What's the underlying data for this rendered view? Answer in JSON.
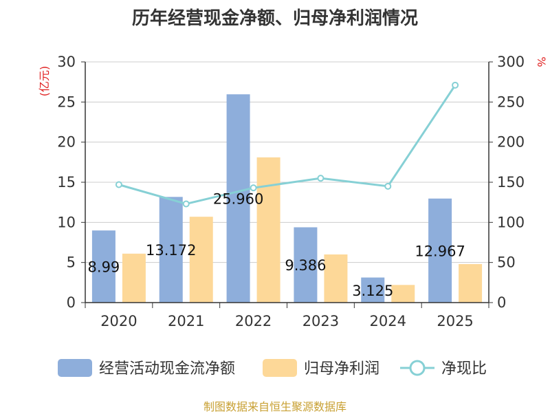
{
  "chart_data": {
    "type": "bar",
    "title": "历年经营现金净额、归母净利润情况",
    "categories": [
      "2020",
      "2021",
      "2022",
      "2023",
      "2024",
      "2025"
    ],
    "series": [
      {
        "name": "经营活动现金流净额",
        "type": "bar",
        "axis": "left",
        "values": [
          8.99,
          13.172,
          25.96,
          9.386,
          3.125,
          12.967
        ],
        "labels": [
          "8.99",
          "13.172",
          "25.960",
          "9.386",
          "3.125",
          "12.967"
        ]
      },
      {
        "name": "归母净利润",
        "type": "bar",
        "axis": "left",
        "values": [
          6.1,
          10.7,
          18.1,
          6.0,
          2.2,
          4.8
        ]
      },
      {
        "name": "净现比",
        "type": "line",
        "axis": "right",
        "values": [
          147,
          123,
          143,
          155,
          145,
          271
        ]
      }
    ],
    "y_left": {
      "label": "(亿元)",
      "min": 0,
      "max": 30,
      "ticks": [
        0,
        5,
        10,
        15,
        20,
        25,
        30
      ]
    },
    "y_right": {
      "label": "%",
      "min": 0,
      "max": 300,
      "ticks": [
        0,
        50,
        100,
        150,
        200,
        250,
        300
      ]
    },
    "grid": true,
    "legend_position": "bottom",
    "colors": {
      "bar1": "#8eaedb",
      "bar2": "#fdd898",
      "line": "#86d0d5",
      "axis": "#333333",
      "grid": "#cccccc",
      "unit": "#e02020",
      "source": "#c8a033"
    }
  },
  "source_note": "制图数据来自恒生聚源数据库"
}
